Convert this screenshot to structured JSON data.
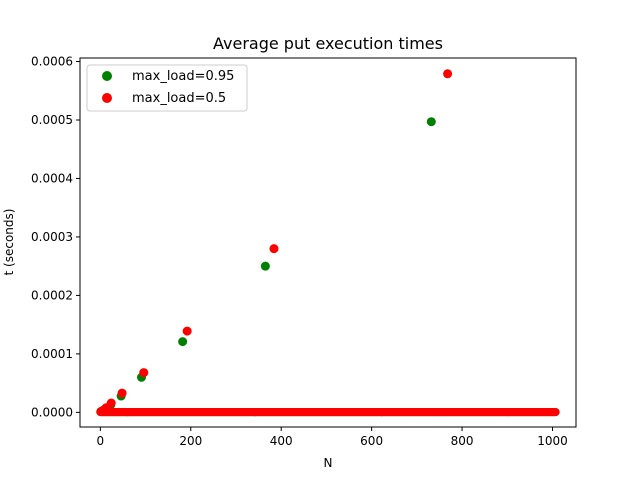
{
  "chart_data": {
    "type": "scatter",
    "title": "Average put execution times",
    "xlabel": "N",
    "ylabel": "t (seconds)",
    "xlim": [
      -45,
      1052
    ],
    "ylim": [
      -2.5e-05,
      0.000606
    ],
    "xticks": [
      0,
      200,
      400,
      600,
      800,
      1000
    ],
    "xtick_labels": [
      "0",
      "200",
      "400",
      "600",
      "800",
      "1000"
    ],
    "yticks": [
      0,
      0.0001,
      0.0002,
      0.0003,
      0.0004,
      0.0005,
      0.0006
    ],
    "ytick_labels": [
      "0.0000",
      "0.0001",
      "0.0002",
      "0.0003",
      "0.0004",
      "0.0005",
      "0.0006"
    ],
    "grid": false,
    "legend_position": "top-left",
    "series": [
      {
        "name": "max_load=0.95",
        "color": "#008000",
        "baseline": {
          "x_start": 0,
          "x_end": 1007,
          "step": 1,
          "y": 5e-07
        },
        "spikes": [
          {
            "x": 1,
            "y": 1.5e-06
          },
          {
            "x": 3,
            "y": 2e-06
          },
          {
            "x": 6,
            "y": 3e-06
          },
          {
            "x": 11,
            "y": 6e-06
          },
          {
            "x": 23,
            "y": 1.3e-05
          },
          {
            "x": 46,
            "y": 2.8e-05
          },
          {
            "x": 91,
            "y": 6e-05
          },
          {
            "x": 182,
            "y": 0.000121
          },
          {
            "x": 365,
            "y": 0.00025
          },
          {
            "x": 732,
            "y": 0.000497
          }
        ]
      },
      {
        "name": "max_load=0.5",
        "color": "#ff0000",
        "baseline": {
          "x_start": 0,
          "x_end": 1007,
          "step": 1,
          "y": 5e-07
        },
        "spikes": [
          {
            "x": 2,
            "y": 1.5e-06
          },
          {
            "x": 4,
            "y": 2e-06
          },
          {
            "x": 7,
            "y": 4e-06
          },
          {
            "x": 13,
            "y": 8e-06
          },
          {
            "x": 24,
            "y": 1.6e-05
          },
          {
            "x": 48,
            "y": 3.3e-05
          },
          {
            "x": 96,
            "y": 6.8e-05
          },
          {
            "x": 192,
            "y": 0.000139
          },
          {
            "x": 384,
            "y": 0.00028
          },
          {
            "x": 768,
            "y": 0.000579
          }
        ]
      }
    ]
  }
}
